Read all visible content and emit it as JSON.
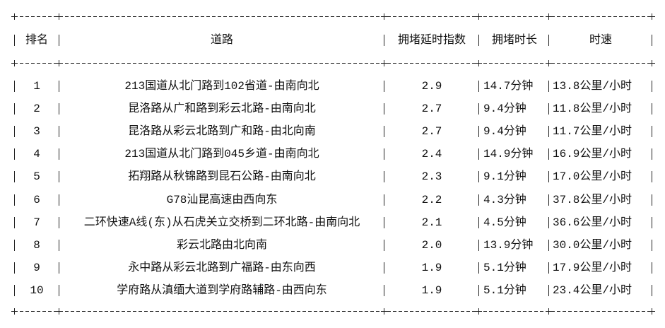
{
  "table": {
    "headers": [
      "排名",
      "道路",
      "拥堵延时指数",
      "拥堵时长",
      "时速"
    ],
    "rows": [
      [
        "1",
        "213国道从北门路到102省道-由南向北",
        "2.9",
        "14.7分钟",
        "13.8公里/小时"
      ],
      [
        "2",
        "昆洛路从广和路到彩云北路-由南向北",
        "2.7",
        "9.4分钟",
        "11.8公里/小时"
      ],
      [
        "3",
        "昆洛路从彩云北路到广和路-由北向南",
        "2.7",
        "9.4分钟",
        "11.7公里/小时"
      ],
      [
        "4",
        "213国道从北门路到045乡道-由南向北",
        "2.4",
        "14.9分钟",
        "16.9公里/小时"
      ],
      [
        "5",
        "拓翔路从秋锦路到昆石公路-由南向北",
        "2.3",
        "9.1分钟",
        "17.0公里/小时"
      ],
      [
        "6",
        "G78汕昆高速由西向东",
        "2.2",
        "4.3分钟",
        "37.8公里/小时"
      ],
      [
        "7",
        "二环快速A线(东)从石虎关立交桥到二环北路-由南向北",
        "2.1",
        "4.5分钟",
        "36.6公里/小时"
      ],
      [
        "8",
        "彩云北路由北向南",
        "2.0",
        "13.9分钟",
        "30.0公里/小时"
      ],
      [
        "9",
        "永中路从彩云北路到广福路-由东向西",
        "1.9",
        "5.1分钟",
        "17.9公里/小时"
      ],
      [
        "10",
        "学府路从滇缅大道到学府路辅路-由西向东",
        "1.9",
        "5.1分钟",
        "23.4公里/小时"
      ]
    ]
  }
}
